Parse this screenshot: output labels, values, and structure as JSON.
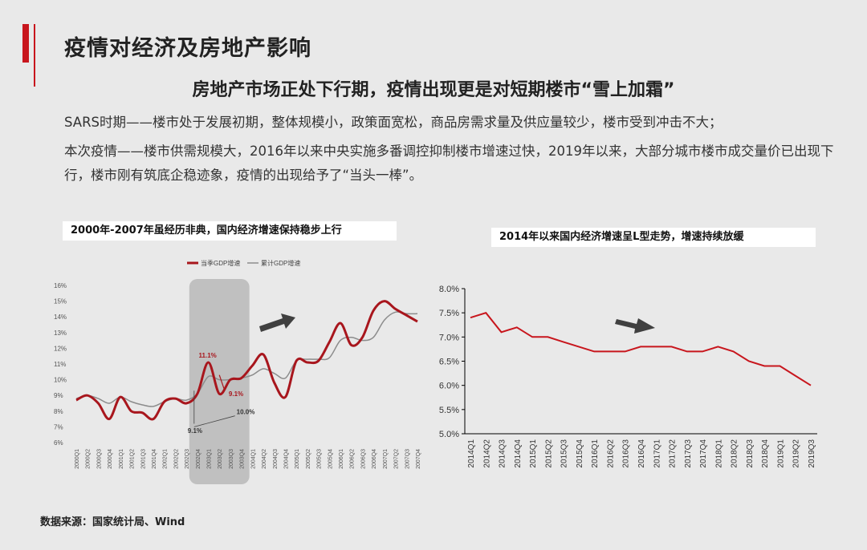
{
  "title": "疫情对经济及房地产影响",
  "subtitle": "房地产市场正处下行期，疫情出现更是对短期楼市“雪上加霜”",
  "paragraphs": {
    "p1": "SARS时期——楼市处于发展初期，整体规模小，政策面宽松，商品房需求量及供应量较少，楼市受到冲击不大；",
    "p2": "本次疫情——楼市供需规模大，2016年以来中央实施多番调控抑制楼市增速过快，2019年以来，大部分城市楼市成交量价已出现下行，楼市刚有筑底企稳迹象，疫情的出现给予了“当头一棒”。"
  },
  "source": "数据来源：国家统计局、Wind",
  "colors": {
    "accent": "#c8161d",
    "series_red": "#a8161d",
    "series_gray": "#8c8c8c",
    "arrow": "#404040"
  },
  "chart_data": [
    {
      "type": "line",
      "title": "2000年-2007年虽经历非典，国内经济增速保持稳步上行",
      "ylim": [
        6,
        16
      ],
      "y_ticks": [
        "6%",
        "7%",
        "8%",
        "9%",
        "10%",
        "11%",
        "12%",
        "13%",
        "14%",
        "15%",
        "16%"
      ],
      "legend_position": "top",
      "categories": [
        "2000Q1",
        "2000Q2",
        "2000Q3",
        "2000Q4",
        "2001Q1",
        "2001Q2",
        "2001Q3",
        "2001Q4",
        "2002Q1",
        "2002Q2",
        "2002Q3",
        "2002Q4",
        "2003Q1",
        "2003Q2",
        "2003Q3",
        "2003Q4",
        "2004Q1",
        "2004Q2",
        "2004Q3",
        "2004Q4",
        "2005Q1",
        "2005Q2",
        "2005Q3",
        "2005Q4",
        "2006Q1",
        "2006Q2",
        "2006Q3",
        "2006Q4",
        "2007Q1",
        "2007Q2",
        "2007Q3",
        "2007Q4"
      ],
      "series": [
        {
          "name": "当季GDP增速",
          "values": [
            8.7,
            9.0,
            8.5,
            7.5,
            8.9,
            8.0,
            7.9,
            7.5,
            8.6,
            8.8,
            8.5,
            9.1,
            11.1,
            9.1,
            10.0,
            10.1,
            10.9,
            11.6,
            9.8,
            8.9,
            11.2,
            11.1,
            11.2,
            12.4,
            13.6,
            12.2,
            12.7,
            14.4,
            15.0,
            14.5,
            14.1,
            13.7
          ]
        },
        {
          "name": "累计GDP增速",
          "values": [
            8.8,
            9.0,
            8.8,
            8.5,
            8.9,
            8.6,
            8.4,
            8.3,
            8.6,
            8.8,
            8.7,
            9.1,
            10.2,
            10.0,
            10.0,
            10.1,
            10.3,
            10.7,
            10.4,
            10.1,
            11.2,
            11.3,
            11.3,
            11.4,
            12.5,
            12.7,
            12.5,
            12.7,
            13.8,
            14.3,
            14.2,
            14.2
          ]
        }
      ],
      "annotations": [
        "11.1%",
        "9.1%",
        "9.1%",
        "10.0%"
      ]
    },
    {
      "type": "line",
      "title": "2014年以来国内经济增速呈L型走势，增速持续放缓",
      "ylim": [
        5.0,
        8.0
      ],
      "y_ticks": [
        "5.0%",
        "5.5%",
        "6.0%",
        "6.5%",
        "7.0%",
        "7.5%",
        "8.0%"
      ],
      "categories": [
        "2014Q1",
        "2014Q2",
        "2014Q3",
        "2014Q4",
        "2015Q1",
        "2015Q2",
        "2015Q3",
        "2015Q4",
        "2016Q1",
        "2016Q2",
        "2016Q3",
        "2016Q4",
        "2017Q1",
        "2017Q2",
        "2017Q3",
        "2017Q4",
        "2018Q1",
        "2018Q2",
        "2018Q3",
        "2018Q4",
        "2019Q1",
        "2019Q2",
        "2019Q3"
      ],
      "values": [
        7.4,
        7.5,
        7.1,
        7.2,
        7.0,
        7.0,
        6.9,
        6.8,
        6.7,
        6.7,
        6.7,
        6.8,
        6.8,
        6.8,
        6.7,
        6.7,
        6.8,
        6.7,
        6.5,
        6.4,
        6.4,
        6.2,
        6.0
      ]
    }
  ]
}
